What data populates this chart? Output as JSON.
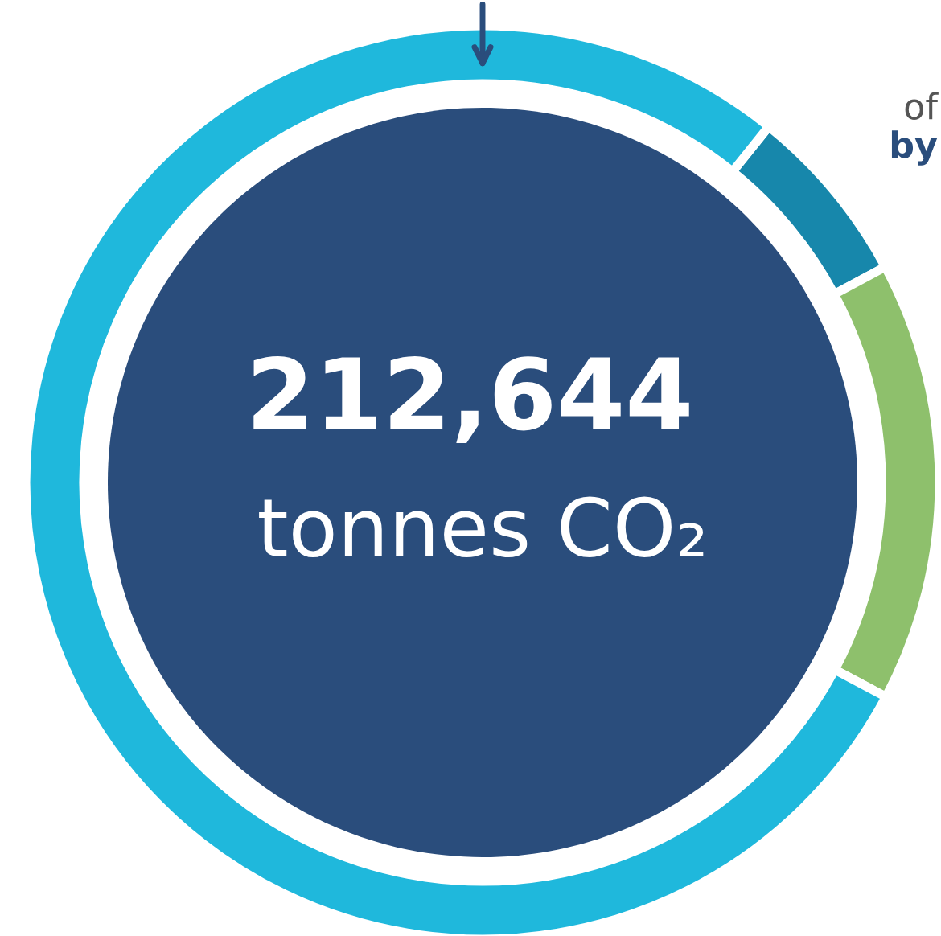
{
  "chart_data": {
    "type": "donut",
    "title": "212,644",
    "subtitle": "tonnes CO₂",
    "categories": [
      null,
      null,
      null
    ],
    "values": [
      6.4,
      15.6,
      78.0
    ],
    "colors": [
      "#1787ab",
      "#8ec06c",
      "#1fb8dc"
    ],
    "annotations": [
      "of",
      "by"
    ]
  }
}
